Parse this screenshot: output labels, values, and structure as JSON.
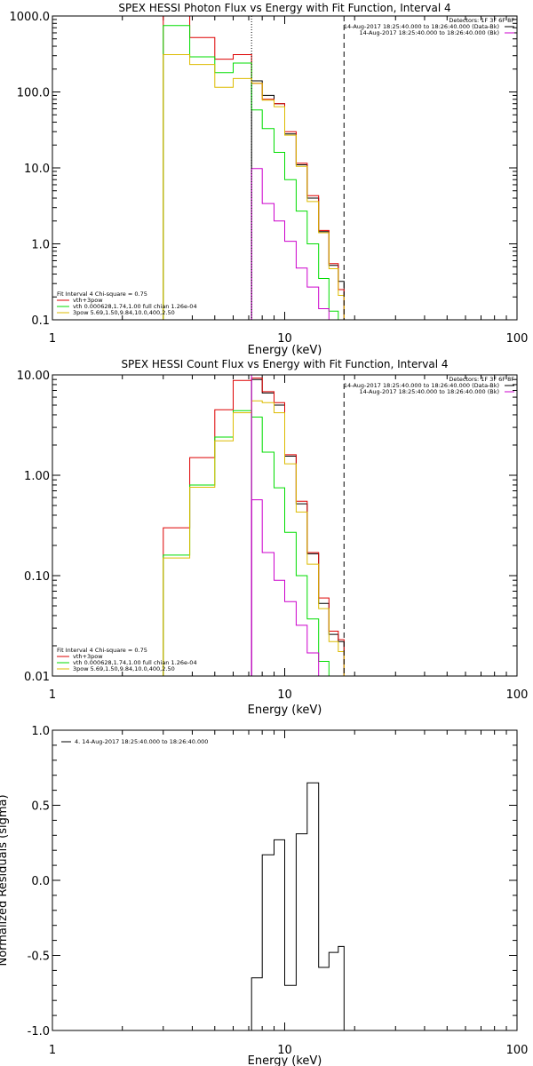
{
  "chart_data": [
    {
      "type": "line",
      "title": "SPEX HESSI Photon Flux vs Energy with Fit Function, Interval 4",
      "xlabel": "Energy (keV)",
      "ylabel": "",
      "xscale": "log",
      "yscale": "log",
      "xlim": [
        1,
        100
      ],
      "ylim": [
        0.1,
        1000
      ],
      "xticks": [
        "1",
        "10",
        "100"
      ],
      "yticks": [
        "0.1",
        "1.0",
        "10.0",
        "100.0",
        "1000.0"
      ],
      "vlines": [
        {
          "x": 7.2,
          "style": "dotted",
          "color": "#000000"
        },
        {
          "x": 18.0,
          "style": "dashed",
          "color": "#000000"
        }
      ],
      "info_top": [
        "Detectors: 1F 3F 6F 8F",
        "14-Aug-2017 18:25:40.000 to 18:26:40.000 (Data-Bk)",
        "14-Aug-2017 18:25:40.000 to 18:26:40.000 (Bk)"
      ],
      "info_legend": "top-right",
      "legend_title": "Fit Interval 4   Chi-square = 0.75",
      "legend_entries": [
        {
          "label": "vth+3pow",
          "color": "#dd0000"
        },
        {
          "label": "vth 0.000628,1.74,1.00   full chian 1.26e-04",
          "color": "#00dd00"
        },
        {
          "label": "3pow 5.69,1.50,9.84,10.0,400,2.50",
          "color": "#ddbb00"
        }
      ],
      "legend_placement": "bottom-left",
      "edges": [
        3.0,
        3.9,
        5.0,
        6.0,
        7.2,
        8.0,
        9.0,
        10.0,
        11.2,
        12.5,
        14.0,
        15.5,
        17.0,
        18.0
      ],
      "series": [
        {
          "role": "data",
          "color": "#000000",
          "x_range": [
            7.2,
            18.0
          ],
          "values": [
            140,
            90,
            70,
            28,
            11,
            4.0,
            1.45,
            0.52,
            0.32
          ]
        },
        {
          "role": "total",
          "color": "#dd0000",
          "x_range": [
            3.0,
            18.0
          ],
          "values": [
            1000,
            520,
            270,
            310,
            130,
            80,
            70,
            30,
            11.5,
            4.3,
            1.5,
            0.55,
            0.25
          ]
        },
        {
          "role": "thermal",
          "color": "#00dd00",
          "x_range": [
            3.0,
            16.0
          ],
          "values": [
            750,
            290,
            180,
            240,
            58,
            33,
            16,
            7.0,
            2.7,
            1.0,
            0.35,
            0.13
          ]
        },
        {
          "role": "powerlaw",
          "color": "#ddbb00",
          "x_range": [
            3.0,
            18.0
          ],
          "values": [
            310,
            230,
            115,
            150,
            130,
            78,
            64,
            27,
            10.5,
            3.6,
            1.4,
            0.47,
            0.21
          ]
        },
        {
          "role": "background",
          "color": "#cc00cc",
          "x_range": [
            7.2,
            17.0
          ],
          "values": [
            9.8,
            3.4,
            2.0,
            1.08,
            0.48,
            0.27,
            0.14,
            0.08
          ]
        }
      ]
    },
    {
      "type": "line",
      "title": "SPEX HESSI Count Flux vs Energy with Fit Function, Interval 4",
      "xlabel": "Energy (keV)",
      "ylabel": "",
      "xscale": "log",
      "yscale": "log",
      "xlim": [
        1,
        100
      ],
      "ylim": [
        0.01,
        10
      ],
      "xticks": [
        "1",
        "10",
        "100"
      ],
      "yticks": [
        "0.01",
        "0.10",
        "1.00",
        "10.00"
      ],
      "vlines": [
        {
          "x": 7.2,
          "style": "solid",
          "color": "#cc00cc"
        },
        {
          "x": 18.0,
          "style": "dashed",
          "color": "#000000"
        }
      ],
      "info_top": [
        "Detectors: 1F 3F 6F 8F",
        "14-Aug-2017 18:25:40.000 to 18:26:40.000 (Data-Bk)",
        "14-Aug-2017 18:25:40.000 to 18:26:40.000 (Bk)"
      ],
      "info_legend": "top-right",
      "legend_title": "Fit Interval 4   Chi-square = 0.75",
      "legend_entries": [
        {
          "label": "vth+3pow",
          "color": "#dd0000"
        },
        {
          "label": "vth 0.000628,1.74,1.00   full chian 1.26e-04",
          "color": "#00dd00"
        },
        {
          "label": "3pow 5.69,1.50,9.84,10.0,400,2.50",
          "color": "#ddbb00"
        }
      ],
      "legend_placement": "bottom-left",
      "edges": [
        3.0,
        3.9,
        5.0,
        6.0,
        7.2,
        8.0,
        9.0,
        10.0,
        11.2,
        12.5,
        14.0,
        15.5,
        17.0,
        18.0
      ],
      "series": [
        {
          "role": "data",
          "color": "#000000",
          "x_range": [
            7.2,
            18.0
          ],
          "values": [
            9.0,
            6.6,
            5.0,
            1.55,
            0.52,
            0.165,
            0.053,
            0.026,
            0.022
          ]
        },
        {
          "role": "total",
          "color": "#dd0000",
          "x_range": [
            3.0,
            18.0
          ],
          "values": [
            0.3,
            1.5,
            4.5,
            8.8,
            9.3,
            6.8,
            5.3,
            1.6,
            0.55,
            0.17,
            0.06,
            0.028,
            0.023
          ]
        },
        {
          "role": "thermal",
          "color": "#00dd00",
          "x_range": [
            3.0,
            16.0
          ],
          "values": [
            0.16,
            0.8,
            2.4,
            4.4,
            3.8,
            1.7,
            0.75,
            0.27,
            0.1,
            0.037,
            0.014,
            0.0065
          ]
        },
        {
          "role": "powerlaw",
          "color": "#ddbb00",
          "x_range": [
            3.0,
            18.0
          ],
          "values": [
            0.15,
            0.76,
            2.2,
            4.2,
            5.5,
            5.3,
            4.2,
            1.3,
            0.43,
            0.13,
            0.047,
            0.022,
            0.0175
          ]
        },
        {
          "role": "background",
          "color": "#cc00cc",
          "x_range": [
            7.2,
            17.0
          ],
          "values": [
            0.57,
            0.17,
            0.09,
            0.055,
            0.032,
            0.017,
            0.0095,
            0.0055
          ]
        }
      ]
    },
    {
      "type": "line",
      "title": "",
      "xlabel": "Energy (keV)",
      "ylabel": "Normalized Residuals (sigma)",
      "xscale": "log",
      "xlim": [
        1,
        100
      ],
      "ylim": [
        -1,
        1
      ],
      "xticks": [
        "1",
        "10",
        "100"
      ],
      "yticks": [
        "-1.0",
        "-0.5",
        "0.0",
        "0.5",
        "1.0"
      ],
      "legend_entries": [
        {
          "label": "4. 14-Aug-2017 18:25:40.000 to 18:26:40.000",
          "color": "#000000"
        }
      ],
      "legend_placement": "top-left",
      "edges": [
        7.2,
        8.0,
        9.0,
        10.0,
        11.2,
        12.5,
        14.0,
        15.5,
        17.0,
        18.0
      ],
      "series": [
        {
          "role": "residuals",
          "color": "#000000",
          "values": [
            -0.65,
            0.17,
            0.27,
            -0.7,
            0.31,
            0.65,
            -0.58,
            -0.48,
            -0.44
          ]
        }
      ]
    }
  ]
}
